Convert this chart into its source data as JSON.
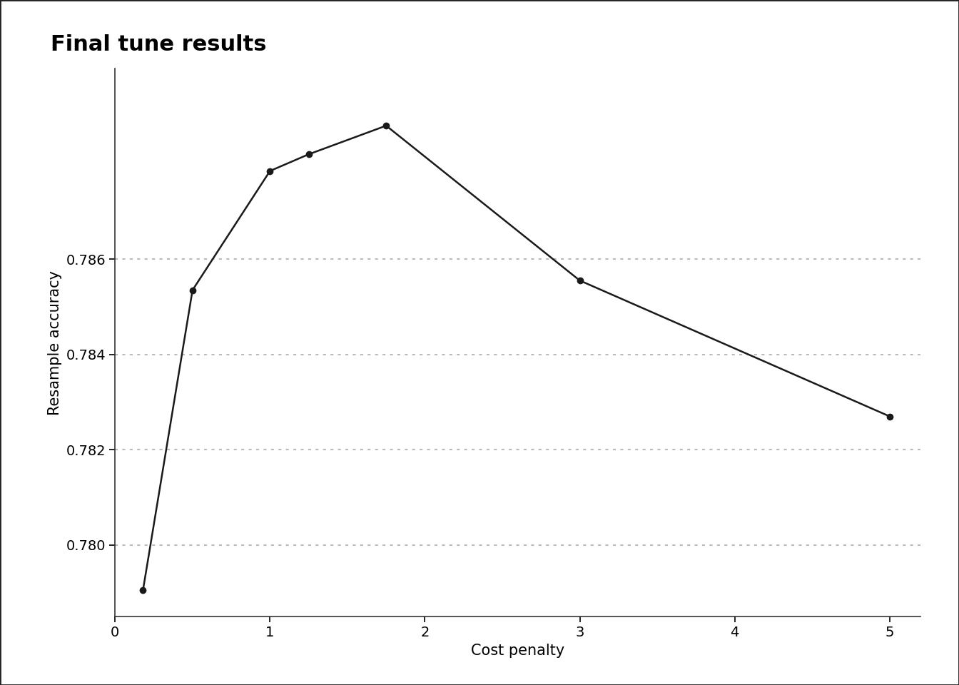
{
  "title": "Final tune results",
  "xlabel": "Cost penalty",
  "ylabel": "Resample accuracy",
  "x": [
    0.18,
    0.5,
    1.0,
    1.25,
    1.75,
    3.0,
    5.0
  ],
  "y": [
    0.77905,
    0.78535,
    0.78785,
    0.7882,
    0.7888,
    0.78555,
    0.7827
  ],
  "xlim": [
    0,
    5.2
  ],
  "ylim": [
    0.7785,
    0.79
  ],
  "yticks": [
    0.78,
    0.782,
    0.784,
    0.786
  ],
  "xticks": [
    0,
    1,
    2,
    3,
    4,
    5
  ],
  "line_color": "#1a1a1a",
  "marker_color": "#1a1a1a",
  "marker_size": 6,
  "line_width": 1.8,
  "grid_color": "#bbbbbb",
  "background_color": "#ffffff",
  "title_fontsize": 22,
  "label_fontsize": 15,
  "tick_fontsize": 14,
  "border_color": "#222222"
}
